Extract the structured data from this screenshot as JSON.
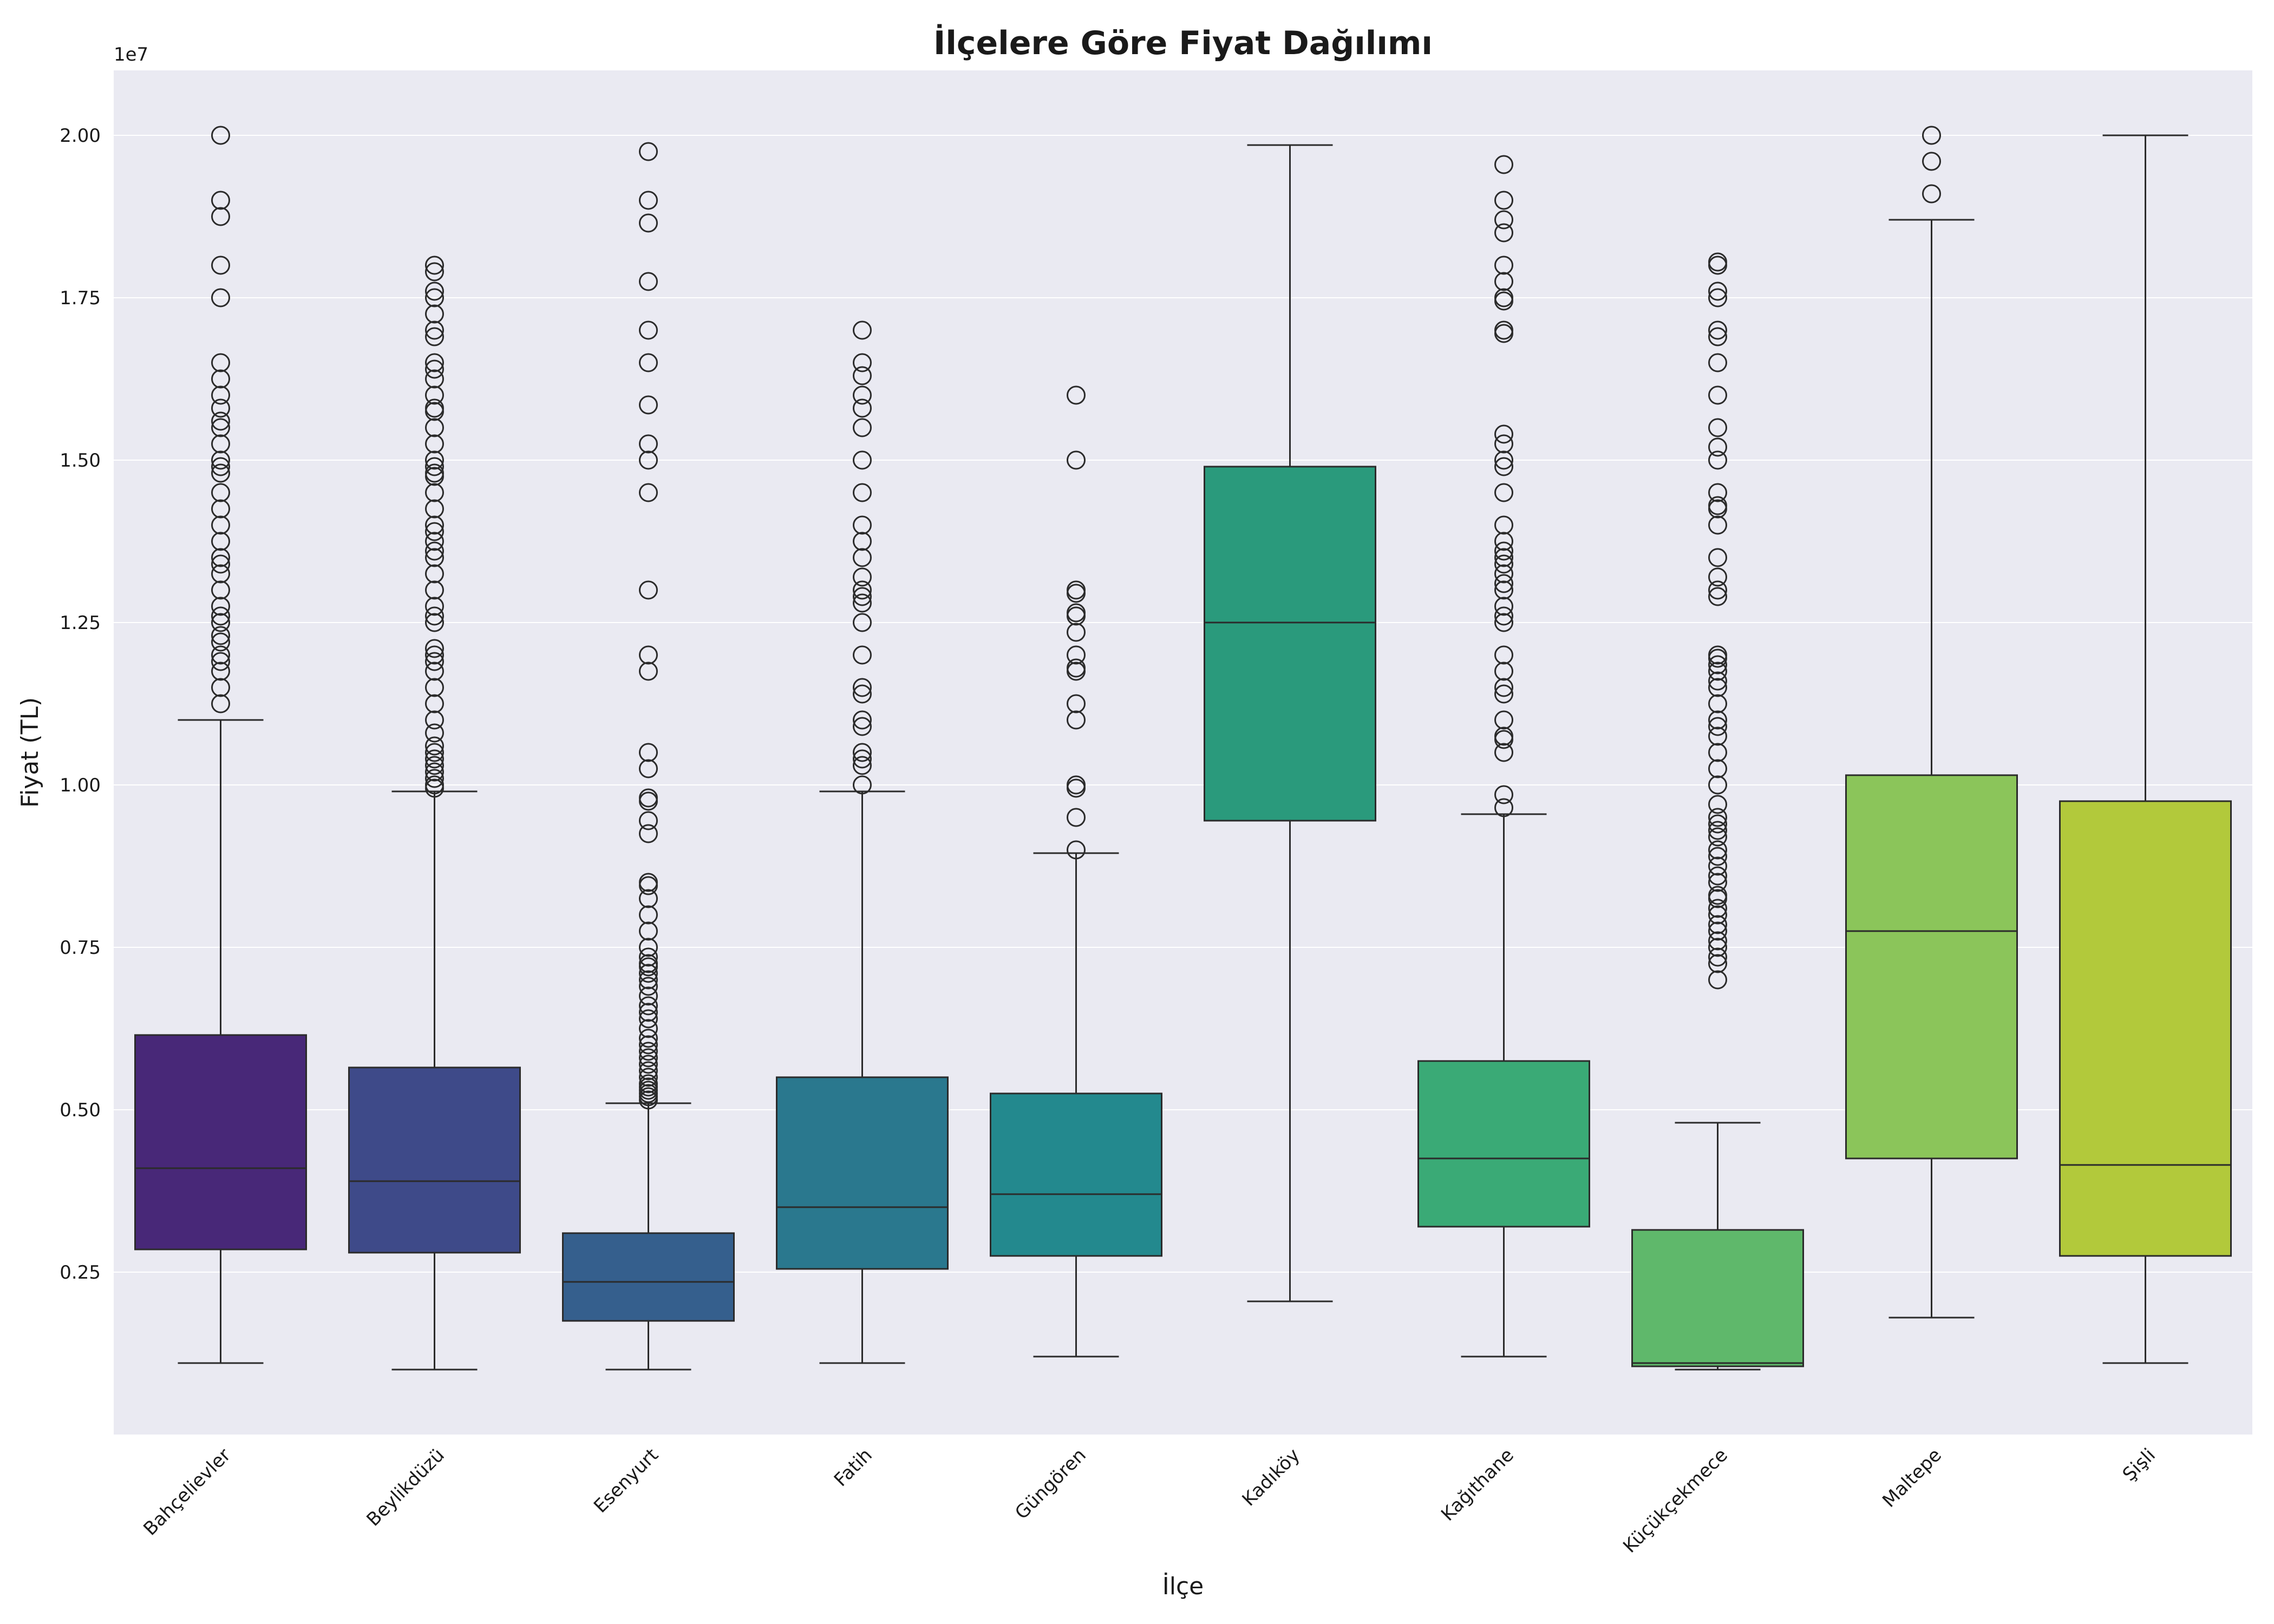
{
  "chart_data": {
    "type": "box",
    "title": "İlçelere Göre Fiyat Dağılımı",
    "xlabel": "İlçe",
    "ylabel": "Fiyat (TL)",
    "y_offset_label": "1e7",
    "ylim": [
      0,
      21000000
    ],
    "yticks": [
      2500000,
      5000000,
      7500000,
      10000000,
      12500000,
      15000000,
      17500000,
      20000000
    ],
    "ytick_labels": [
      "0.25",
      "0.50",
      "0.75",
      "1.00",
      "1.25",
      "1.50",
      "1.75",
      "2.00"
    ],
    "grid": true,
    "legend": "none",
    "background_color": "#eaeaf2",
    "categories": [
      "Bahçelievler",
      "Beylikdüzü",
      "Esenyurt",
      "Fatih",
      "Güngören",
      "Kadıköy",
      "Kağıthane",
      "Küçükçekmece",
      "Maltepe",
      "Şişli"
    ],
    "boxes": [
      {
        "name": "Bahçelievler",
        "color": "#482878",
        "whisker_low": 1100000,
        "q1": 2850000,
        "median": 4100000,
        "q3": 6150000,
        "whisker_high": 11000000,
        "outliers": [
          11250000,
          11500000,
          11750000,
          11900000,
          12000000,
          12200000,
          12300000,
          12500000,
          12600000,
          12750000,
          13000000,
          13250000,
          13400000,
          13500000,
          13750000,
          14000000,
          14250000,
          14500000,
          14800000,
          14900000,
          15000000,
          15250000,
          15500000,
          15600000,
          15800000,
          16000000,
          16250000,
          16500000,
          17500000,
          18000000,
          18750000,
          19000000,
          20000000
        ]
      },
      {
        "name": "Beylikdüzü",
        "color": "#3e4a89",
        "whisker_low": 1000000,
        "q1": 2800000,
        "median": 3900000,
        "q3": 5650000,
        "whisker_high": 9900000,
        "outliers": [
          9950000,
          10000000,
          10100000,
          10200000,
          10300000,
          10400000,
          10500000,
          10600000,
          10800000,
          11000000,
          11250000,
          11500000,
          11750000,
          11900000,
          12000000,
          12100000,
          12500000,
          12600000,
          12750000,
          13000000,
          13250000,
          13500000,
          13600000,
          13750000,
          13900000,
          14000000,
          14250000,
          14500000,
          14750000,
          14800000,
          14900000,
          15000000,
          15250000,
          15500000,
          15750000,
          15800000,
          16000000,
          16250000,
          16400000,
          16500000,
          16900000,
          17000000,
          17250000,
          17500000,
          17600000,
          17900000,
          18000000
        ]
      },
      {
        "name": "Esenyurt",
        "color": "#355f8d",
        "whisker_low": 1000000,
        "q1": 1750000,
        "median": 2350000,
        "q3": 3100000,
        "whisker_high": 5100000,
        "outliers": [
          5150000,
          5200000,
          5250000,
          5300000,
          5350000,
          5400000,
          5500000,
          5600000,
          5700000,
          5800000,
          5900000,
          6000000,
          6100000,
          6250000,
          6400000,
          6500000,
          6600000,
          6750000,
          6900000,
          7000000,
          7100000,
          7200000,
          7250000,
          7350000,
          7500000,
          7750000,
          8000000,
          8250000,
          8450000,
          8500000,
          9250000,
          9450000,
          9750000,
          9800000,
          10250000,
          10500000,
          11750000,
          12000000,
          13000000,
          14500000,
          15000000,
          15250000,
          15850000,
          16500000,
          17000000,
          17750000,
          18650000,
          19000000,
          19750000
        ]
      },
      {
        "name": "Fatih",
        "color": "#2a788e",
        "whisker_low": 1100000,
        "q1": 2550000,
        "median": 3500000,
        "q3": 5500000,
        "whisker_high": 9900000,
        "outliers": [
          10000000,
          10300000,
          10400000,
          10500000,
          10900000,
          11000000,
          11400000,
          11500000,
          12000000,
          12500000,
          12800000,
          12900000,
          13000000,
          13200000,
          13500000,
          13750000,
          14000000,
          14500000,
          15000000,
          15500000,
          15800000,
          16000000,
          16300000,
          16500000,
          17000000
        ]
      },
      {
        "name": "Güngören",
        "color": "#23898e",
        "whisker_low": 1200000,
        "q1": 2750000,
        "median": 3700000,
        "q3": 5250000,
        "whisker_high": 8950000,
        "outliers": [
          9000000,
          9500000,
          9950000,
          10000000,
          11000000,
          11250000,
          11750000,
          11800000,
          12000000,
          12350000,
          12600000,
          12650000,
          12950000,
          13000000,
          15000000,
          16000000
        ]
      },
      {
        "name": "Kadıköy",
        "color": "#2a9a7c",
        "whisker_low": 2050000,
        "q1": 9450000,
        "median": 12500000,
        "q3": 14900000,
        "whisker_high": 19850000,
        "outliers": []
      },
      {
        "name": "Kağıthane",
        "color": "#3aaa76",
        "whisker_low": 1200000,
        "q1": 3200000,
        "median": 4250000,
        "q3": 5750000,
        "whisker_high": 9550000,
        "outliers": [
          9650000,
          9850000,
          10500000,
          10700000,
          10750000,
          11000000,
          11400000,
          11500000,
          11750000,
          12000000,
          12500000,
          12600000,
          12750000,
          13000000,
          13100000,
          13250000,
          13400000,
          13500000,
          13600000,
          13750000,
          14000000,
          14500000,
          14900000,
          15000000,
          15250000,
          15400000,
          16950000,
          17000000,
          17450000,
          17500000,
          17750000,
          18000000,
          18500000,
          18700000,
          19000000,
          19550000
        ]
      },
      {
        "name": "Küçükçekmece",
        "color": "#5fb86b",
        "whisker_low": 1000000,
        "q1": 1050000,
        "median": 1100000,
        "q3": 3150000,
        "whisker_high": 4800000,
        "outliers": [
          7000000,
          7250000,
          7350000,
          7500000,
          7600000,
          7750000,
          7850000,
          8000000,
          8100000,
          8250000,
          8300000,
          8500000,
          8600000,
          8750000,
          8900000,
          9000000,
          9200000,
          9300000,
          9400000,
          9500000,
          9700000,
          10000000,
          10250000,
          10500000,
          10750000,
          10900000,
          11000000,
          11250000,
          11500000,
          11600000,
          11750000,
          11850000,
          11950000,
          12000000,
          12900000,
          13000000,
          13200000,
          13500000,
          14000000,
          14250000,
          14300000,
          14500000,
          15000000,
          15200000,
          15500000,
          16000000,
          16500000,
          16900000,
          17000000,
          17500000,
          17600000,
          18000000,
          18050000
        ]
      },
      {
        "name": "Maltepe",
        "color": "#8bc55a",
        "whisker_low": 1800000,
        "q1": 4250000,
        "median": 7750000,
        "q3": 10150000,
        "whisker_high": 18700000,
        "outliers": [
          19100000,
          19600000,
          20000000
        ]
      },
      {
        "name": "Şişli",
        "color": "#b2c93b",
        "whisker_low": 1100000,
        "q1": 2750000,
        "median": 4150000,
        "q3": 9750000,
        "whisker_high": 20000000,
        "outliers": []
      }
    ]
  }
}
